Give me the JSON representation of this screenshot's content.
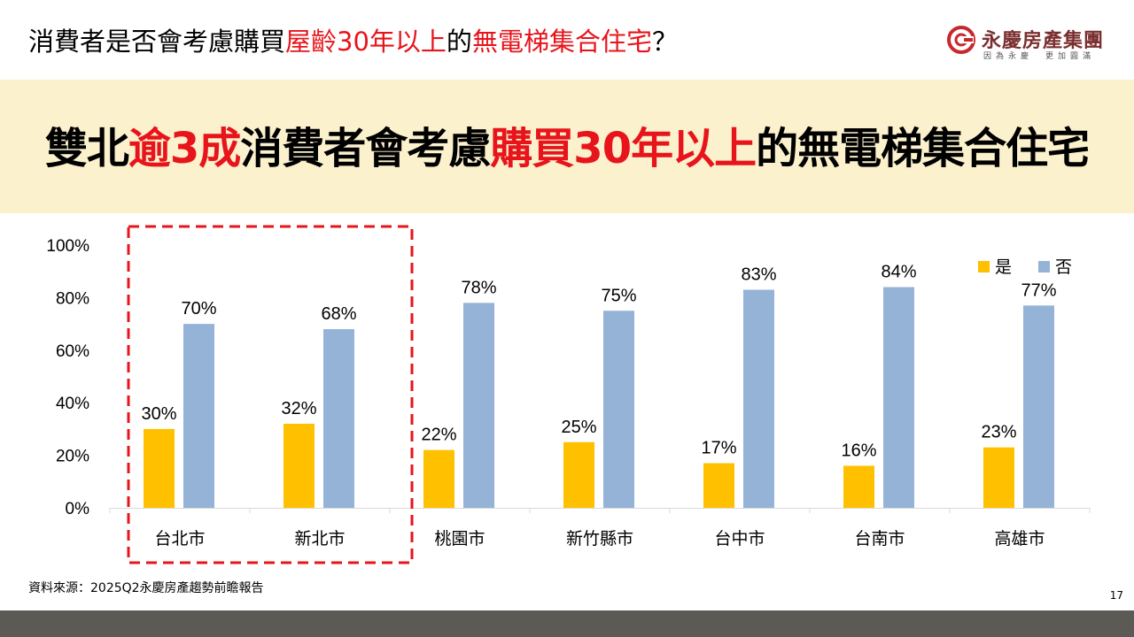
{
  "slide": {
    "title_part1": "消費者是否會考慮購買",
    "title_red1": "屋齡30年以上",
    "title_part2": "的",
    "title_red2": "無電梯集合住宅",
    "title_part3": "？",
    "headline_part1": "雙北",
    "headline_red1": "逾3成",
    "headline_part2": "消費者會考慮",
    "headline_red2": "購買30年以上",
    "headline_part3": "的無電梯集合住宅",
    "source": "資料來源：2025Q2永慶房產趨勢前瞻報告",
    "page_number": "17"
  },
  "logo": {
    "name": "永慶房產集團",
    "slogan": "因為永慶　更加圓滿"
  },
  "colors": {
    "yes": "#ffc000",
    "no": "#95b3d7",
    "accent_red": "#e8141b",
    "highlight_box": "#e8141b"
  },
  "chart_data": {
    "type": "bar",
    "categories": [
      "台北市",
      "新北市",
      "桃園市",
      "新竹縣市",
      "台中市",
      "台南市",
      "高雄市"
    ],
    "series": [
      {
        "name": "是",
        "values": [
          30,
          32,
          22,
          25,
          17,
          16,
          23
        ],
        "labels": [
          "30%",
          "32%",
          "22%",
          "25%",
          "17%",
          "16%",
          "23%"
        ]
      },
      {
        "name": "否",
        "values": [
          70,
          68,
          78,
          75,
          83,
          84,
          77
        ],
        "labels": [
          "70%",
          "68%",
          "78%",
          "75%",
          "83%",
          "84%",
          "77%"
        ]
      }
    ],
    "y_ticks": [
      "0%",
      "20%",
      "40%",
      "60%",
      "80%",
      "100%"
    ],
    "ylim": [
      0,
      100
    ],
    "legend_position": "top-right",
    "highlighted_categories": [
      "台北市",
      "新北市"
    ],
    "grid": false
  }
}
